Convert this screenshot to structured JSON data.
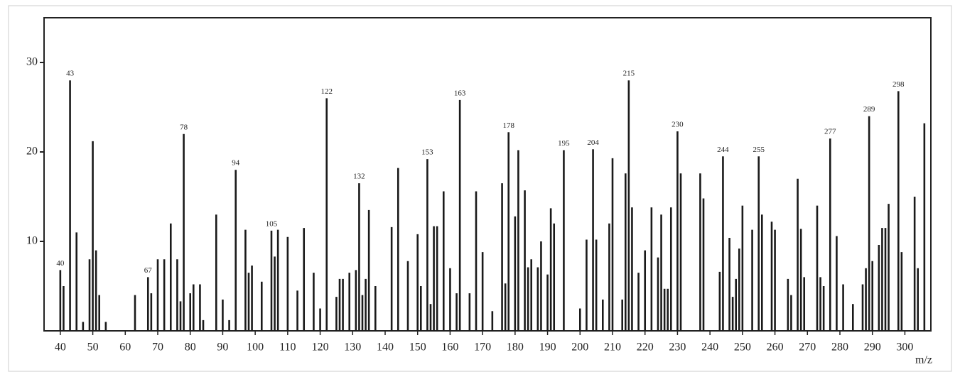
{
  "chart_data": {
    "type": "stick",
    "x_label": "m/z",
    "x": [
      40,
      41,
      43,
      45,
      47,
      49,
      50,
      51,
      52,
      54,
      63,
      67,
      68,
      70,
      72,
      74,
      76,
      77,
      78,
      80,
      81,
      83,
      84,
      88,
      90,
      92,
      94,
      97,
      98,
      99,
      102,
      105,
      106,
      107,
      110,
      113,
      115,
      118,
      120,
      122,
      125,
      126,
      127,
      129,
      131,
      132,
      133,
      134,
      135,
      137,
      142,
      144,
      147,
      150,
      151,
      153,
      154,
      155,
      156,
      158,
      160,
      162,
      163,
      166,
      168,
      170,
      173,
      176,
      177,
      178,
      180,
      181,
      183,
      184,
      185,
      187,
      188,
      190,
      191,
      192,
      195,
      200,
      202,
      204,
      205,
      207,
      209,
      210,
      213,
      214,
      215,
      216,
      218,
      220,
      222,
      224,
      225,
      226,
      227,
      228,
      230,
      231,
      237,
      238,
      243,
      244,
      246,
      247,
      248,
      249,
      250,
      253,
      255,
      256,
      259,
      260,
      264,
      265,
      267,
      268,
      269,
      273,
      274,
      275,
      277,
      279,
      281,
      284,
      287,
      288,
      289,
      290,
      292,
      293,
      294,
      295,
      298,
      299,
      303,
      304,
      306
    ],
    "values": [
      6.8,
      5,
      28,
      11,
      1,
      8,
      21.2,
      9,
      4,
      1,
      4,
      6,
      4.2,
      8,
      8,
      12,
      8,
      3.3,
      22,
      4.2,
      5.2,
      5.2,
      1.2,
      13,
      3.5,
      1.2,
      18,
      11.3,
      6.5,
      7.3,
      5.5,
      11.2,
      8.3,
      11.3,
      10.5,
      4.5,
      11.5,
      6.5,
      2.5,
      26,
      3.8,
      5.8,
      5.8,
      6.5,
      6.8,
      16.5,
      4,
      5.8,
      13.5,
      5,
      11.6,
      18.2,
      7.8,
      10.8,
      5,
      19.2,
      3,
      11.7,
      11.7,
      15.6,
      7,
      4.2,
      25.8,
      4.2,
      15.6,
      8.8,
      2.2,
      16.5,
      5.3,
      22.2,
      12.8,
      20.2,
      15.7,
      7.1,
      8,
      7.1,
      10,
      6.3,
      13.7,
      12,
      20.2,
      2.5,
      10.2,
      20.3,
      10.2,
      3.5,
      12,
      19.3,
      3.5,
      17.6,
      28,
      13.8,
      6.5,
      9,
      13.8,
      8.2,
      13,
      4.7,
      4.7,
      13.8,
      22.3,
      17.6,
      17.6,
      14.8,
      6.6,
      19.5,
      10.4,
      3.8,
      5.8,
      9.2,
      14,
      11.3,
      19.5,
      13,
      12.2,
      11.3,
      5.8,
      4,
      17,
      11.4,
      6,
      14,
      6,
      5,
      21.5,
      10.6,
      5.2,
      3,
      5.2,
      7,
      24,
      7.8,
      9.6,
      11.5,
      11.5,
      14.2,
      26.8,
      8.8,
      15,
      7,
      23.2
    ],
    "labels": [
      "40",
      null,
      "43",
      null,
      null,
      null,
      null,
      null,
      null,
      null,
      null,
      "67",
      null,
      null,
      null,
      null,
      null,
      null,
      "78",
      null,
      null,
      null,
      null,
      null,
      null,
      null,
      "94",
      null,
      null,
      null,
      null,
      "105",
      null,
      null,
      null,
      null,
      null,
      null,
      null,
      "122",
      null,
      null,
      null,
      null,
      null,
      "132",
      null,
      null,
      null,
      null,
      null,
      null,
      null,
      null,
      null,
      "153",
      null,
      null,
      null,
      null,
      null,
      null,
      "163",
      null,
      null,
      null,
      null,
      null,
      null,
      "178",
      null,
      null,
      null,
      null,
      null,
      null,
      null,
      null,
      null,
      null,
      "195",
      null,
      null,
      "204",
      null,
      null,
      null,
      null,
      null,
      null,
      "215",
      null,
      null,
      null,
      null,
      null,
      null,
      null,
      null,
      null,
      "230",
      null,
      null,
      null,
      null,
      "244",
      null,
      null,
      null,
      null,
      null,
      null,
      "255",
      null,
      null,
      null,
      null,
      null,
      null,
      null,
      null,
      null,
      null,
      null,
      "277",
      null,
      null,
      null,
      null,
      null,
      "289",
      null,
      null,
      null,
      null,
      null,
      "298",
      null,
      null,
      null,
      null
    ],
    "color": "#1a1a1a",
    "xlim": [
      35,
      308
    ],
    "xticks": [
      40,
      50,
      60,
      70,
      80,
      90,
      100,
      110,
      120,
      130,
      140,
      150,
      160,
      170,
      180,
      190,
      200,
      210,
      220,
      230,
      240,
      250,
      260,
      270,
      280,
      290,
      300
    ],
    "ylim": [
      0,
      35
    ],
    "yticks": [
      10,
      20,
      30
    ]
  }
}
